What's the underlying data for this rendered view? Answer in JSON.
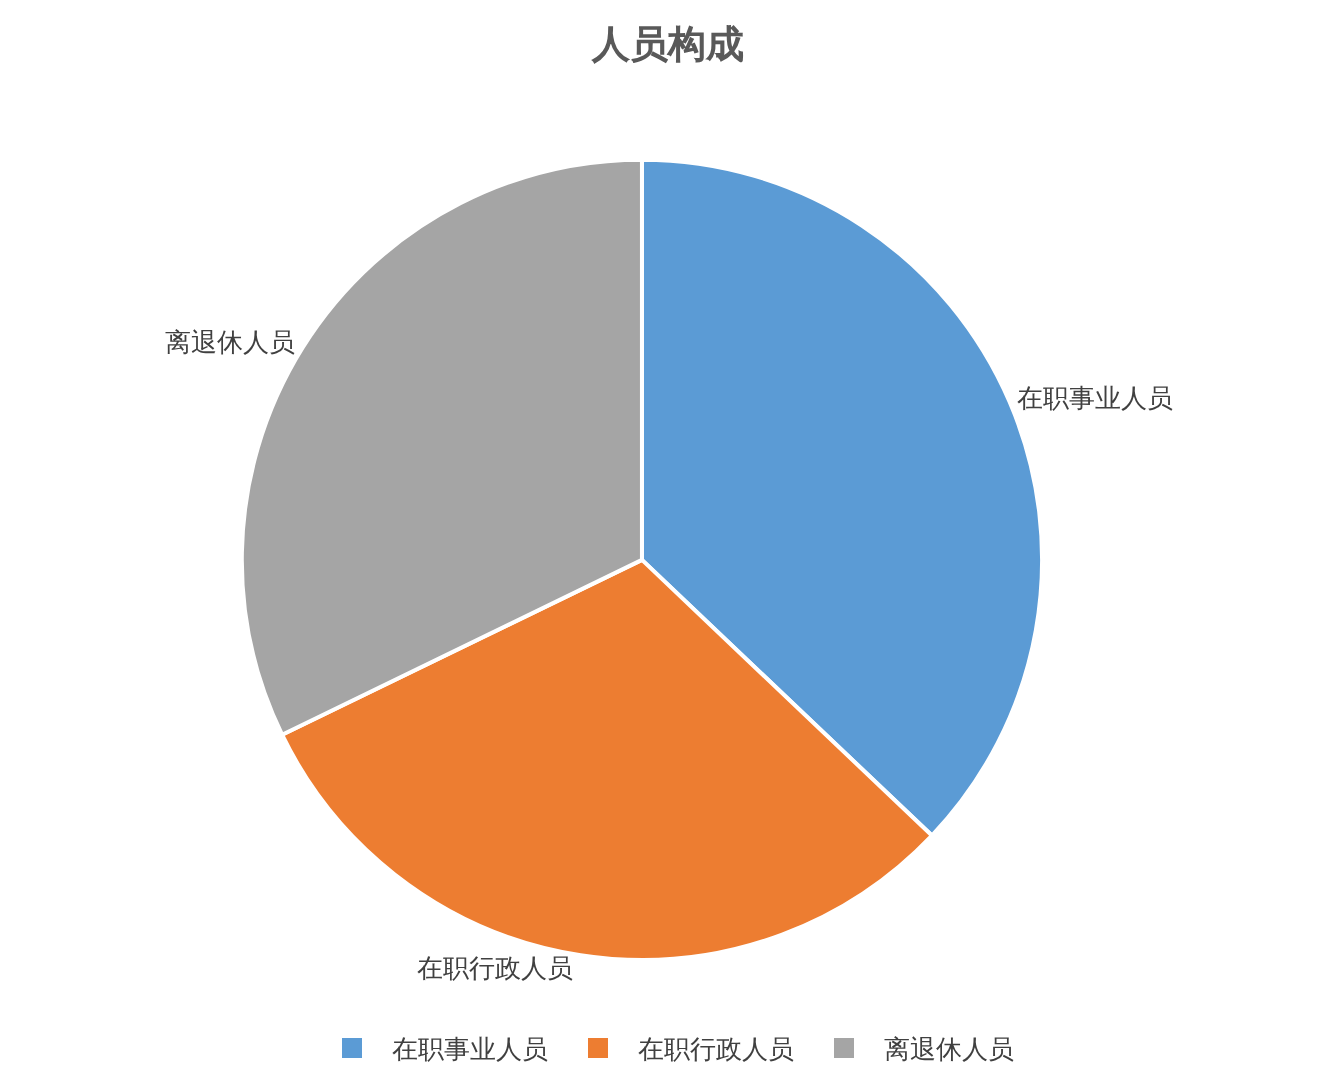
{
  "chart_data": {
    "type": "pie",
    "title": "人员构成",
    "categories": [
      "在职事业人员",
      "在职行政人员",
      "离退休人员"
    ],
    "values": [
      37.1,
      30.7,
      32.2
    ],
    "colors": [
      "#5b9bd5",
      "#ed7d31",
      "#a5a5a5"
    ],
    "legend": "bottom"
  }
}
